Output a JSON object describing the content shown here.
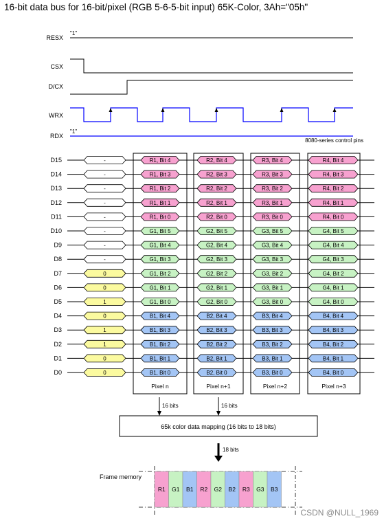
{
  "title": "16-bit data bus for 16-bit/pixel (RGB 5-6-5-bit input) 65K-Color, 3Ah=\"05h\"",
  "control": {
    "resx": "RESX",
    "csx": "CSX",
    "dcx": "D/CX",
    "wrx": "WRX",
    "rdx": "RDX",
    "resx_level": "\"1\"",
    "rdx_level": "\"1\"",
    "note": "8080-series control pins"
  },
  "bus": {
    "pins": [
      "D15",
      "D14",
      "D13",
      "D12",
      "D11",
      "D10",
      "D9",
      "D8",
      "D7",
      "D6",
      "D5",
      "D4",
      "D3",
      "D2",
      "D1",
      "D0"
    ],
    "command_values": [
      "-",
      "-",
      "-",
      "-",
      "-",
      "-",
      "-",
      "-",
      "0",
      "0",
      "1",
      "0",
      "1",
      "1",
      "0",
      "0"
    ],
    "pixels": [
      {
        "label": "Pixel n",
        "bits": [
          "R1, Bit 4",
          "R1, Bit 3",
          "R1, Bit 2",
          "R1, Bit 1",
          "R1, Bit 0",
          "G1, Bit 5",
          "G1, Bit 4",
          "G1, Bit 3",
          "G1, Bit 2",
          "G1, Bit 1",
          "G1, Bit 0",
          "B1, Bit 4",
          "B1, Bit 3",
          "B1, Bit 2",
          "B1, Bit 1",
          "B1, Bit 0"
        ]
      },
      {
        "label": "Pixel n+1",
        "bits": [
          "R2, Bit 4",
          "R2, Bit 3",
          "R2, Bit 2",
          "R2, Bit 1",
          "R2, Bit 0",
          "G2, Bit 5",
          "G2, Bit 4",
          "G2, Bit 3",
          "G2, Bit 2",
          "G2, Bit 1",
          "G2, Bit 0",
          "B2, Bit 4",
          "B2, Bit 3",
          "B2, Bit 2",
          "B2, Bit 1",
          "B2, Bit 0"
        ]
      },
      {
        "label": "Pixel n+2",
        "bits": [
          "R3, Bit 4",
          "R3, Bit 3",
          "R3, Bit 2",
          "R3, Bit 1",
          "R3, Bit 0",
          "G3, Bit 5",
          "G3, Bit 4",
          "G3, Bit 3",
          "G3, Bit 2",
          "G3, Bit 1",
          "G3, Bit 0",
          "B3, Bit 4",
          "B3, Bit 3",
          "B3, Bit 2",
          "B3, Bit 1",
          "B3, Bit 0"
        ]
      },
      {
        "label": "Pixel n+3",
        "bits": [
          "R4, Bit 4",
          "R4, Bit 3",
          "R4, Bit 2",
          "R4, Bit 1",
          "R4, Bit 0",
          "G4, Bit 5",
          "G4, Bit 4",
          "G4, Bit 3",
          "G4, Bit 2",
          "G4, Bit 1",
          "G4, Bit 0",
          "B4, Bit 4",
          "B4, Bit 3",
          "B4, Bit 2",
          "B4, Bit 1",
          "B4, Bit 0"
        ]
      }
    ],
    "bits_label_1": "16 bits",
    "bits_label_2": "16 bits"
  },
  "mapping": {
    "label": "65k color data mapping (16 bits to 18 bits)",
    "out_bits": "18 bits"
  },
  "frame_memory": {
    "label": "Frame memory",
    "cells": [
      "R1",
      "G1",
      "B1",
      "R2",
      "G2",
      "B2",
      "R3",
      "G3",
      "B3"
    ]
  },
  "watermark": "CSDN @NULL_1969",
  "colors": {
    "red": "#f7a1cf",
    "green": "#c7f2c3",
    "blue": "#a3c5f5",
    "yellow": "#fbfa9f",
    "line": "#000000",
    "wave": "#0000ff"
  }
}
